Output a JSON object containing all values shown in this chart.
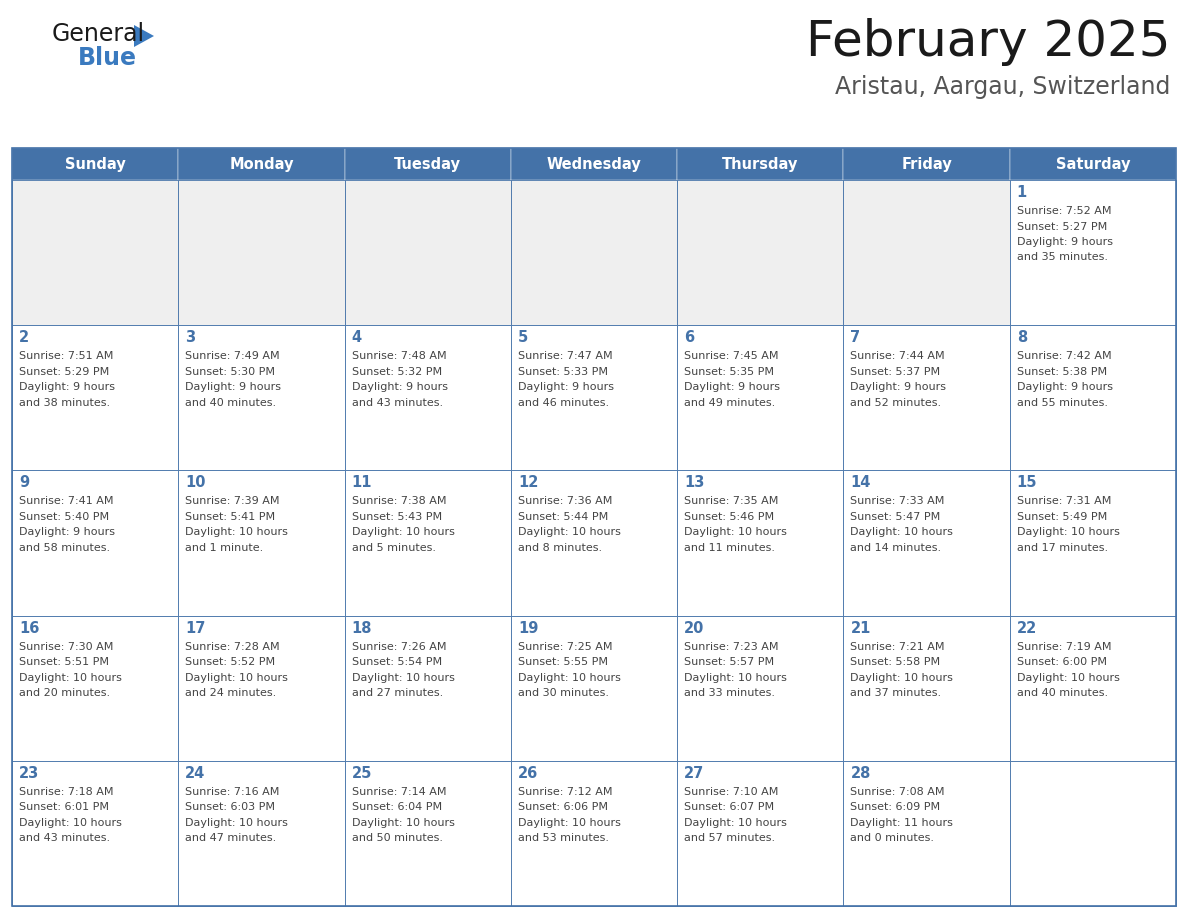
{
  "title": "February 2025",
  "subtitle": "Aristau, Aargau, Switzerland",
  "days_of_week": [
    "Sunday",
    "Monday",
    "Tuesday",
    "Wednesday",
    "Thursday",
    "Friday",
    "Saturday"
  ],
  "header_bg": "#4472a8",
  "header_text": "#ffffff",
  "cell_bg_gray": "#efefef",
  "cell_bg_white": "#ffffff",
  "border_color": "#4472a8",
  "row_border_color": "#4472a8",
  "day_num_color": "#4472a8",
  "text_color": "#444444",
  "title_color": "#1a1a1a",
  "calendar_data": [
    [
      {
        "day": null,
        "sunrise": null,
        "sunset": null,
        "daylight": null
      },
      {
        "day": null,
        "sunrise": null,
        "sunset": null,
        "daylight": null
      },
      {
        "day": null,
        "sunrise": null,
        "sunset": null,
        "daylight": null
      },
      {
        "day": null,
        "sunrise": null,
        "sunset": null,
        "daylight": null
      },
      {
        "day": null,
        "sunrise": null,
        "sunset": null,
        "daylight": null
      },
      {
        "day": null,
        "sunrise": null,
        "sunset": null,
        "daylight": null
      },
      {
        "day": 1,
        "sunrise": "7:52 AM",
        "sunset": "5:27 PM",
        "daylight": "9 hours\nand 35 minutes."
      }
    ],
    [
      {
        "day": 2,
        "sunrise": "7:51 AM",
        "sunset": "5:29 PM",
        "daylight": "9 hours\nand 38 minutes."
      },
      {
        "day": 3,
        "sunrise": "7:49 AM",
        "sunset": "5:30 PM",
        "daylight": "9 hours\nand 40 minutes."
      },
      {
        "day": 4,
        "sunrise": "7:48 AM",
        "sunset": "5:32 PM",
        "daylight": "9 hours\nand 43 minutes."
      },
      {
        "day": 5,
        "sunrise": "7:47 AM",
        "sunset": "5:33 PM",
        "daylight": "9 hours\nand 46 minutes."
      },
      {
        "day": 6,
        "sunrise": "7:45 AM",
        "sunset": "5:35 PM",
        "daylight": "9 hours\nand 49 minutes."
      },
      {
        "day": 7,
        "sunrise": "7:44 AM",
        "sunset": "5:37 PM",
        "daylight": "9 hours\nand 52 minutes."
      },
      {
        "day": 8,
        "sunrise": "7:42 AM",
        "sunset": "5:38 PM",
        "daylight": "9 hours\nand 55 minutes."
      }
    ],
    [
      {
        "day": 9,
        "sunrise": "7:41 AM",
        "sunset": "5:40 PM",
        "daylight": "9 hours\nand 58 minutes."
      },
      {
        "day": 10,
        "sunrise": "7:39 AM",
        "sunset": "5:41 PM",
        "daylight": "10 hours\nand 1 minute."
      },
      {
        "day": 11,
        "sunrise": "7:38 AM",
        "sunset": "5:43 PM",
        "daylight": "10 hours\nand 5 minutes."
      },
      {
        "day": 12,
        "sunrise": "7:36 AM",
        "sunset": "5:44 PM",
        "daylight": "10 hours\nand 8 minutes."
      },
      {
        "day": 13,
        "sunrise": "7:35 AM",
        "sunset": "5:46 PM",
        "daylight": "10 hours\nand 11 minutes."
      },
      {
        "day": 14,
        "sunrise": "7:33 AM",
        "sunset": "5:47 PM",
        "daylight": "10 hours\nand 14 minutes."
      },
      {
        "day": 15,
        "sunrise": "7:31 AM",
        "sunset": "5:49 PM",
        "daylight": "10 hours\nand 17 minutes."
      }
    ],
    [
      {
        "day": 16,
        "sunrise": "7:30 AM",
        "sunset": "5:51 PM",
        "daylight": "10 hours\nand 20 minutes."
      },
      {
        "day": 17,
        "sunrise": "7:28 AM",
        "sunset": "5:52 PM",
        "daylight": "10 hours\nand 24 minutes."
      },
      {
        "day": 18,
        "sunrise": "7:26 AM",
        "sunset": "5:54 PM",
        "daylight": "10 hours\nand 27 minutes."
      },
      {
        "day": 19,
        "sunrise": "7:25 AM",
        "sunset": "5:55 PM",
        "daylight": "10 hours\nand 30 minutes."
      },
      {
        "day": 20,
        "sunrise": "7:23 AM",
        "sunset": "5:57 PM",
        "daylight": "10 hours\nand 33 minutes."
      },
      {
        "day": 21,
        "sunrise": "7:21 AM",
        "sunset": "5:58 PM",
        "daylight": "10 hours\nand 37 minutes."
      },
      {
        "day": 22,
        "sunrise": "7:19 AM",
        "sunset": "6:00 PM",
        "daylight": "10 hours\nand 40 minutes."
      }
    ],
    [
      {
        "day": 23,
        "sunrise": "7:18 AM",
        "sunset": "6:01 PM",
        "daylight": "10 hours\nand 43 minutes."
      },
      {
        "day": 24,
        "sunrise": "7:16 AM",
        "sunset": "6:03 PM",
        "daylight": "10 hours\nand 47 minutes."
      },
      {
        "day": 25,
        "sunrise": "7:14 AM",
        "sunset": "6:04 PM",
        "daylight": "10 hours\nand 50 minutes."
      },
      {
        "day": 26,
        "sunrise": "7:12 AM",
        "sunset": "6:06 PM",
        "daylight": "10 hours\nand 53 minutes."
      },
      {
        "day": 27,
        "sunrise": "7:10 AM",
        "sunset": "6:07 PM",
        "daylight": "10 hours\nand 57 minutes."
      },
      {
        "day": 28,
        "sunrise": "7:08 AM",
        "sunset": "6:09 PM",
        "daylight": "11 hours\nand 0 minutes."
      },
      {
        "day": null,
        "sunrise": null,
        "sunset": null,
        "daylight": null
      }
    ]
  ],
  "logo_text_general": "General",
  "logo_text_blue": "Blue",
  "logo_color_general": "#1a1a1a",
  "logo_color_blue": "#3a7abf",
  "fig_width": 11.88,
  "fig_height": 9.18,
  "dpi": 100
}
